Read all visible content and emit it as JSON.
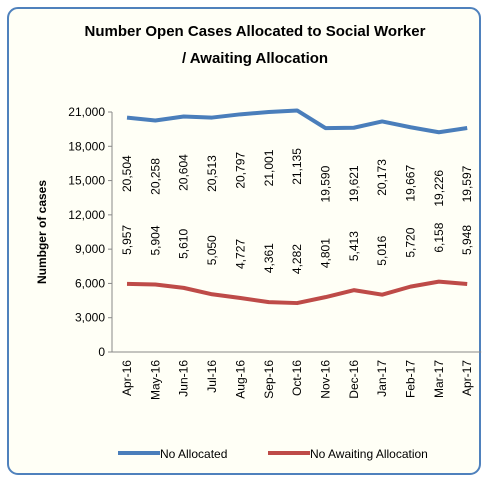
{
  "chart_data": {
    "type": "line",
    "title": [
      "Number Open Cases Allocated to Social Worker",
      "/ Awaiting Allocation"
    ],
    "y_label": "Numbger of cases",
    "categories": [
      "Apr-16",
      "May-16",
      "Jun-16",
      "Jul-16",
      "Aug-16",
      "Sep-16",
      "Oct-16",
      "Nov-16",
      "Dec-16",
      "Jan-17",
      "Feb-17",
      "Mar-17",
      "Apr-17"
    ],
    "series": [
      {
        "name": "No Allocated",
        "color": "#4a7ebb",
        "values": [
          20504,
          20258,
          20604,
          20513,
          20797,
          21001,
          21135,
          19590,
          19621,
          20173,
          19667,
          19226,
          19597
        ],
        "value_labels": [
          "20,504",
          "20,258",
          "20,604",
          "20,513",
          "20,797",
          "21,001",
          "21,135",
          "19,590",
          "19,621",
          "20,173",
          "19,667",
          "19,226",
          "19,597"
        ]
      },
      {
        "name": "No Awaiting Allocation",
        "color": "#be4b48",
        "values": [
          5957,
          5904,
          5610,
          5050,
          4727,
          4361,
          4282,
          4801,
          5413,
          5016,
          5720,
          6158,
          5948
        ],
        "value_labels": [
          "5,957",
          "5,904",
          "5,610",
          "5,050",
          "4,727",
          "4,361",
          "4,282",
          "4,801",
          "5,413",
          "5,016",
          "5,720",
          "6,158",
          "5,948"
        ]
      }
    ],
    "ylim": [
      0,
      21000
    ],
    "yticks": [
      0,
      {
        "value": 3000,
        "label": "3,000"
      },
      {
        "value": 6000,
        "label": "6,000"
      },
      {
        "value": 9000,
        "label": "9,000"
      },
      {
        "value": 12000,
        "label": "12,000"
      },
      {
        "value": 15000,
        "label": "15,000"
      },
      {
        "value": 18000,
        "label": "18,000"
      },
      {
        "value": 21000,
        "label": "21,000"
      }
    ],
    "legend": "bottom"
  }
}
